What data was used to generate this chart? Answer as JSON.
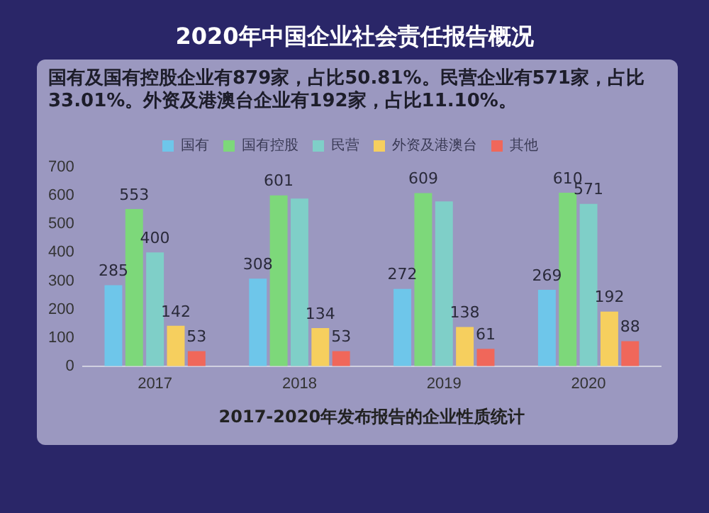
{
  "chart_data": {
    "type": "bar",
    "title": "2020年中国企业社会责任报告概况",
    "subtitle": "国有及国有控股企业有879家，占比50.81%。民营企业有571家，占比33.01%。外资及港澳台企业有192家，占比11.10%。",
    "xlabel": "2017-2020年发布报告的企业性质统计",
    "categories": [
      "2017",
      "2018",
      "2019",
      "2020"
    ],
    "series": [
      {
        "name": "国有",
        "color": "#6ec6ea",
        "values": [
          285,
          308,
          272,
          269
        ],
        "value_labels": [
          "285",
          "308",
          "272",
          "269"
        ]
      },
      {
        "name": "国有控股",
        "color": "#7dd87a",
        "values": [
          553,
          601,
          609,
          610
        ],
        "value_labels": [
          "553",
          "601",
          "609",
          "610"
        ]
      },
      {
        "name": "民营",
        "color": "#7fcfc8",
        "values": [
          400,
          590,
          580,
          571
        ],
        "value_labels": [
          "400",
          null,
          null,
          "571"
        ]
      },
      {
        "name": "外资及港澳台",
        "color": "#f6cf5e",
        "values": [
          142,
          134,
          138,
          192
        ],
        "value_labels": [
          "142",
          "134",
          "138",
          "192"
        ]
      },
      {
        "name": "其他",
        "color": "#f0675a",
        "values": [
          53,
          53,
          61,
          88
        ],
        "value_labels": [
          "53",
          "53",
          "61",
          "88"
        ]
      }
    ],
    "ylim": [
      0,
      700
    ],
    "yticks": [
      0,
      100,
      200,
      300,
      400,
      500,
      600,
      700
    ],
    "legend": "top"
  }
}
